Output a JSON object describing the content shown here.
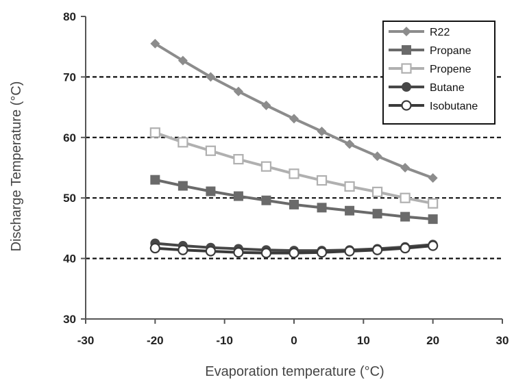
{
  "chart_data": {
    "type": "line",
    "xlabel": "Evaporation temperature (°C)",
    "ylabel": "Discharge Temperature (°C)",
    "xlim": [
      -30,
      30
    ],
    "ylim": [
      30,
      80
    ],
    "x_ticks": [
      "-30",
      "-20",
      "-10",
      "0",
      "10",
      "20",
      "30"
    ],
    "y_ticks": [
      "30",
      "40",
      "50",
      "60",
      "70",
      "80"
    ],
    "grid": "dashed horizontal lines at 40, 50, 60, 70",
    "legend_position": "top-right",
    "x": [
      -20,
      -16,
      -12,
      -8,
      -4,
      0,
      4,
      8,
      12,
      16,
      20
    ],
    "series": [
      {
        "name": "R22",
        "marker": "diamond",
        "color": "#8c8c8c",
        "values": [
          75.5,
          72.7,
          70.0,
          67.6,
          65.3,
          63.1,
          61.0,
          58.9,
          56.9,
          55.0,
          53.3
        ]
      },
      {
        "name": "Propane",
        "marker": "square",
        "color": "#6a6a6a",
        "values": [
          53.0,
          52.0,
          51.1,
          50.3,
          49.6,
          48.9,
          48.4,
          47.9,
          47.4,
          46.9,
          46.5
        ]
      },
      {
        "name": "Propene",
        "marker": "open-square",
        "color": "#b0b0b0",
        "values": [
          60.8,
          59.2,
          57.8,
          56.4,
          55.2,
          54.0,
          52.9,
          51.9,
          51.0,
          50.0,
          49.1
        ]
      },
      {
        "name": "Butane",
        "marker": "circle",
        "color": "#474747",
        "values": [
          42.5,
          42.1,
          41.8,
          41.6,
          41.4,
          41.3,
          41.3,
          41.4,
          41.6,
          41.9,
          42.3
        ]
      },
      {
        "name": "Isobutane",
        "marker": "open-circle",
        "color": "#3a3a3a",
        "values": [
          41.7,
          41.4,
          41.2,
          41.0,
          40.9,
          40.9,
          41.0,
          41.2,
          41.4,
          41.7,
          42.1
        ]
      }
    ]
  }
}
